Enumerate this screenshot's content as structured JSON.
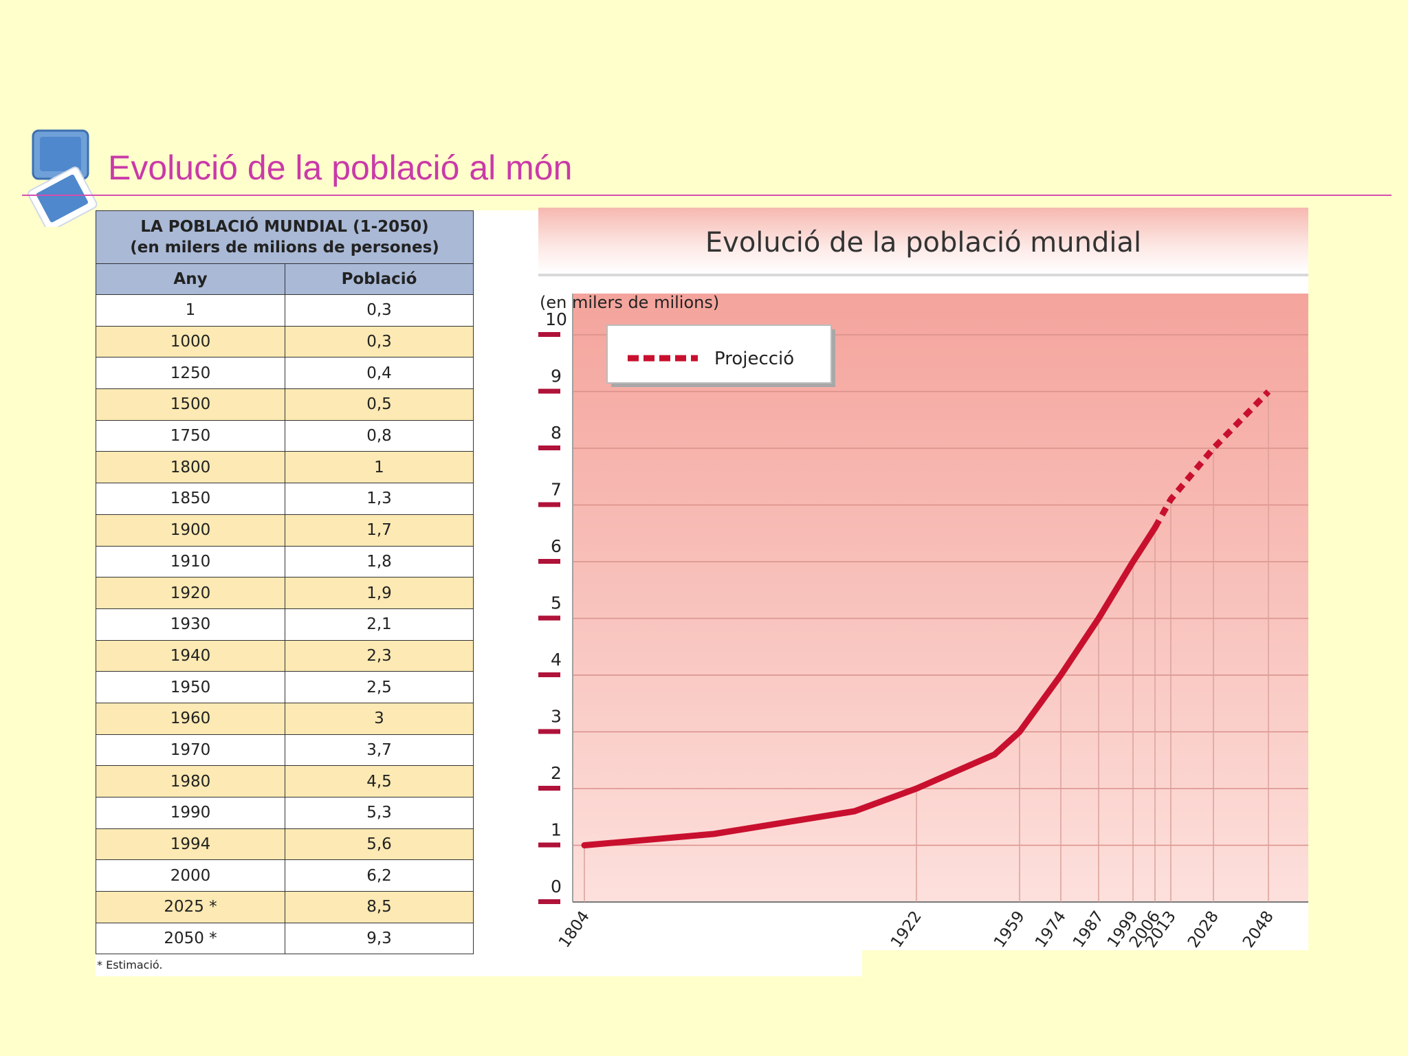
{
  "page": {
    "title": "Evolució de la població al món"
  },
  "table": {
    "caption_line1": "LA POBLACIÓ MUNDIAL (1-2050)",
    "caption_line2": "(en milers de milions de persones)",
    "col_year": "Any",
    "col_population": "Població",
    "rows": [
      {
        "year": "1",
        "value": "0,3"
      },
      {
        "year": "1000",
        "value": "0,3"
      },
      {
        "year": "1250",
        "value": "0,4"
      },
      {
        "year": "1500",
        "value": "0,5"
      },
      {
        "year": "1750",
        "value": "0,8"
      },
      {
        "year": "1800",
        "value": "1"
      },
      {
        "year": "1850",
        "value": "1,3"
      },
      {
        "year": "1900",
        "value": "1,7"
      },
      {
        "year": "1910",
        "value": "1,8"
      },
      {
        "year": "1920",
        "value": "1,9"
      },
      {
        "year": "1930",
        "value": "2,1"
      },
      {
        "year": "1940",
        "value": "2,3"
      },
      {
        "year": "1950",
        "value": "2,5"
      },
      {
        "year": "1960",
        "value": "3"
      },
      {
        "year": "1970",
        "value": "3,7"
      },
      {
        "year": "1980",
        "value": "4,5"
      },
      {
        "year": "1990",
        "value": "5,3"
      },
      {
        "year": "1994",
        "value": "5,6"
      },
      {
        "year": "2000",
        "value": "6,2"
      },
      {
        "year": "2025 *",
        "value": "8,5"
      },
      {
        "year": "2050 *",
        "value": "9,3"
      }
    ],
    "footnote": "* Estimació."
  },
  "chart_data": {
    "type": "line",
    "title": "Evolució de la població mundial",
    "ylabel": "(en milers de milions)",
    "ylim": [
      0,
      10
    ],
    "yticks": [
      "0",
      "1",
      "2",
      "3",
      "4",
      "5",
      "6",
      "7",
      "8",
      "9",
      "10"
    ],
    "xticks": [
      "1804",
      "1922",
      "1959",
      "1974",
      "1987",
      "1999",
      "2006",
      "2013",
      "2028",
      "2048"
    ],
    "legend": "Projecció",
    "legend_position": "top-left",
    "grid": true,
    "series": [
      {
        "style": "solid",
        "points": [
          {
            "x": 1804,
            "y": 1.0
          },
          {
            "x": 1850,
            "y": 1.2
          },
          {
            "x": 1900,
            "y": 1.6
          },
          {
            "x": 1922,
            "y": 2.0
          },
          {
            "x": 1950,
            "y": 2.6
          },
          {
            "x": 1959,
            "y": 3.0
          },
          {
            "x": 1974,
            "y": 4.0
          },
          {
            "x": 1987,
            "y": 5.0
          },
          {
            "x": 1999,
            "y": 6.0
          },
          {
            "x": 2006,
            "y": 6.6
          }
        ]
      },
      {
        "name": "Projecció",
        "style": "dashed",
        "points": [
          {
            "x": 2006,
            "y": 6.6
          },
          {
            "x": 2013,
            "y": 7.1
          },
          {
            "x": 2028,
            "y": 8.0
          },
          {
            "x": 2048,
            "y": 9.0
          }
        ]
      }
    ],
    "colors": {
      "line": "#c8102e",
      "plot_top": "#f4a49c",
      "plot_bottom": "#fde0dc"
    }
  }
}
